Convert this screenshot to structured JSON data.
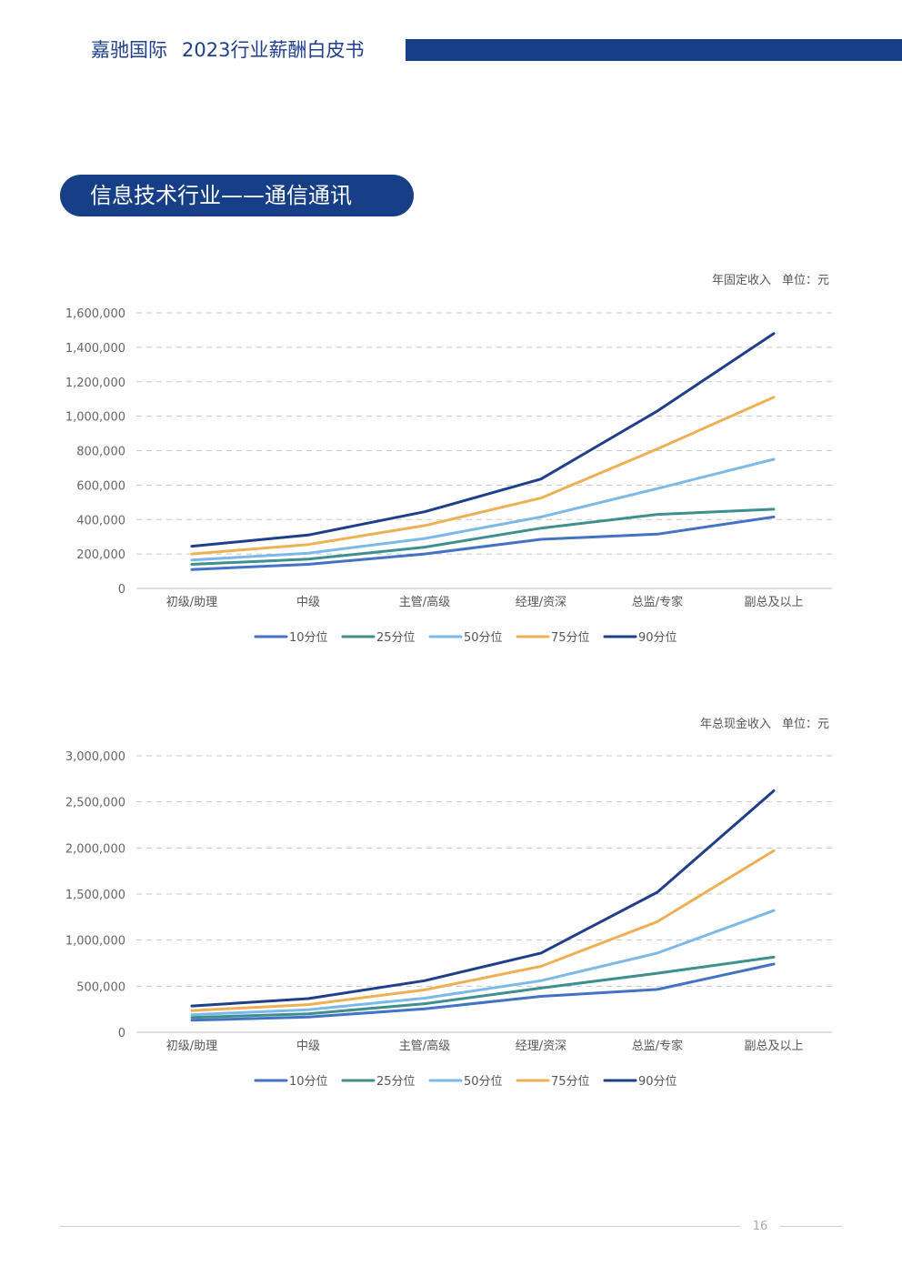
{
  "header": {
    "company": "嘉驰国际",
    "doc_title": "2023行业薪酬白皮书"
  },
  "section": {
    "title": "信息技术行业——通信通讯"
  },
  "colors": {
    "brand": "#173f88",
    "series": [
      "#4472c4",
      "#3f8f8f",
      "#7cb9e8",
      "#eeb054",
      "#1f3f8a"
    ],
    "grid": "#c8c8c8"
  },
  "chart_data": [
    {
      "type": "line",
      "corner_label": "年固定收入",
      "unit_label": "单位：元",
      "categories": [
        "初级/助理",
        "中级",
        "主管/高级",
        "经理/资深",
        "总监/专家",
        "副总及以上"
      ],
      "y_ticks": [
        "1,600,000",
        "1,400,000",
        "1,200,000",
        "1,000,000",
        "800,000",
        "600,000",
        "400,000",
        "200,000",
        "0"
      ],
      "ylim": [
        0,
        1600000
      ],
      "grid": true,
      "legend_position": "bottom",
      "series": [
        {
          "name": "10分位",
          "values": [
            110000,
            140000,
            200000,
            285000,
            315000,
            415000
          ]
        },
        {
          "name": "25分位",
          "values": [
            140000,
            170000,
            240000,
            350000,
            430000,
            460000
          ]
        },
        {
          "name": "50分位",
          "values": [
            165000,
            205000,
            290000,
            415000,
            580000,
            750000
          ]
        },
        {
          "name": "75分位",
          "values": [
            200000,
            255000,
            365000,
            525000,
            810000,
            1110000
          ]
        },
        {
          "name": "90分位",
          "values": [
            245000,
            310000,
            445000,
            635000,
            1030000,
            1480000
          ]
        }
      ]
    },
    {
      "type": "line",
      "corner_label": "年总现金收入",
      "unit_label": "单位：元",
      "categories": [
        "初级/助理",
        "中级",
        "主管/高级",
        "经理/资深",
        "总监/专家",
        "副总及以上"
      ],
      "y_ticks": [
        "3,000,000",
        "2,500,000",
        "2,000,000",
        "1,500,000",
        "1,000,000",
        "500,000",
        "0"
      ],
      "ylim": [
        0,
        3000000
      ],
      "grid": true,
      "legend_position": "bottom",
      "series": [
        {
          "name": "10分位",
          "values": [
            130000,
            165000,
            255000,
            390000,
            465000,
            740000
          ]
        },
        {
          "name": "25分位",
          "values": [
            160000,
            200000,
            310000,
            480000,
            640000,
            815000
          ]
        },
        {
          "name": "50分位",
          "values": [
            190000,
            245000,
            370000,
            560000,
            860000,
            1320000
          ]
        },
        {
          "name": "75分位",
          "values": [
            235000,
            300000,
            460000,
            715000,
            1200000,
            1970000
          ]
        },
        {
          "name": "90分位",
          "values": [
            285000,
            365000,
            560000,
            860000,
            1520000,
            2620000
          ]
        }
      ]
    }
  ],
  "footer": {
    "page_number": "16"
  }
}
